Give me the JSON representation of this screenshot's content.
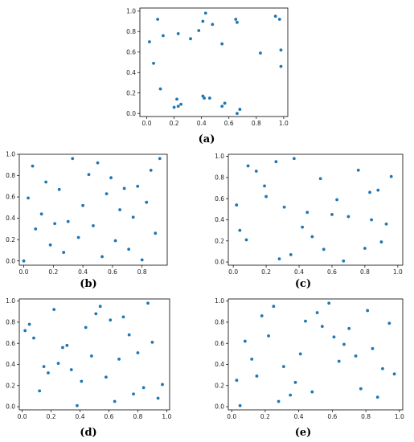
{
  "chart_data": [
    {
      "type": "scatter",
      "caption": "(a)",
      "xlim": [
        -0.05,
        1.03
      ],
      "ylim": [
        -0.03,
        1.03
      ],
      "xticks": [
        0.0,
        0.2,
        0.4,
        0.6,
        0.8,
        1.0
      ],
      "yticks": [
        0.0,
        0.2,
        0.4,
        0.6,
        0.8,
        1.0
      ],
      "tick_labels_x": [
        "0.0",
        "0.2",
        "0.4",
        "0.6",
        "0.8",
        "1.0"
      ],
      "tick_labels_y": [
        "0.0",
        "0.2",
        "0.4",
        "0.6",
        "0.8",
        "1.0"
      ],
      "grid": false,
      "series": [
        {
          "color": "#1f77b4",
          "x": [
            0.02,
            0.05,
            0.08,
            0.12,
            0.23,
            0.32,
            0.38,
            0.41,
            0.43,
            0.48,
            0.55,
            0.65,
            0.66,
            0.83,
            0.94,
            0.97,
            0.98,
            0.98,
            0.1,
            0.2,
            0.22,
            0.23,
            0.25,
            0.41,
            0.42,
            0.46,
            0.55,
            0.57,
            0.66,
            0.68
          ],
          "y": [
            0.7,
            0.49,
            0.92,
            0.76,
            0.78,
            0.73,
            0.81,
            0.9,
            0.98,
            0.87,
            0.68,
            0.92,
            0.89,
            0.59,
            0.95,
            0.92,
            0.62,
            0.46,
            0.24,
            0.06,
            0.14,
            0.07,
            0.09,
            0.17,
            0.15,
            0.15,
            0.07,
            0.1,
            0.0,
            0.04
          ]
        }
      ]
    },
    {
      "type": "scatter",
      "caption": "(b)",
      "xlim": [
        -0.03,
        0.97
      ],
      "ylim": [
        -0.04,
        1.0
      ],
      "xticks": [
        0.0,
        0.2,
        0.4,
        0.6,
        0.8
      ],
      "yticks": [
        0.0,
        0.2,
        0.4,
        0.6,
        0.8,
        1.0
      ],
      "tick_labels_x": [
        "0.0",
        "0.2",
        "0.4",
        "0.6",
        "0.8"
      ],
      "tick_labels_y": [
        "0.0",
        "0.2",
        "0.4",
        "0.6",
        "0.8",
        "1.0"
      ],
      "grid": false,
      "series": [
        {
          "color": "#1f77b4",
          "x": [
            0.0,
            0.03,
            0.06,
            0.08,
            0.12,
            0.15,
            0.18,
            0.21,
            0.24,
            0.27,
            0.3,
            0.33,
            0.37,
            0.4,
            0.44,
            0.47,
            0.5,
            0.53,
            0.56,
            0.59,
            0.62,
            0.65,
            0.68,
            0.71,
            0.74,
            0.77,
            0.8,
            0.83,
            0.86,
            0.89,
            0.92
          ],
          "y": [
            0.0,
            0.59,
            0.89,
            0.3,
            0.44,
            0.74,
            0.15,
            0.35,
            0.67,
            0.08,
            0.37,
            0.96,
            0.22,
            0.52,
            0.81,
            0.33,
            0.92,
            0.04,
            0.63,
            0.78,
            0.19,
            0.48,
            0.68,
            0.11,
            0.41,
            0.7,
            0.01,
            0.55,
            0.85,
            0.26,
            0.96
          ]
        }
      ]
    },
    {
      "type": "scatter",
      "caption": "(c)",
      "xlim": [
        -0.03,
        1.03
      ],
      "ylim": [
        -0.03,
        1.02
      ],
      "xticks": [
        0.0,
        0.2,
        0.4,
        0.6,
        0.8,
        1.0
      ],
      "yticks": [
        0.0,
        0.2,
        0.4,
        0.6,
        0.8,
        1.0
      ],
      "tick_labels_x": [
        "0.0",
        "0.2",
        "0.4",
        "0.6",
        "0.8",
        "1.0"
      ],
      "tick_labels_y": [
        "0.0",
        "0.2",
        "0.4",
        "0.6",
        "0.8",
        "1.0"
      ],
      "grid": false,
      "series": [
        {
          "color": "#1f77b4",
          "x": [
            0.02,
            0.04,
            0.08,
            0.09,
            0.14,
            0.19,
            0.2,
            0.26,
            0.28,
            0.31,
            0.35,
            0.37,
            0.42,
            0.45,
            0.48,
            0.53,
            0.55,
            0.6,
            0.63,
            0.67,
            0.7,
            0.76,
            0.8,
            0.83,
            0.84,
            0.88,
            0.9,
            0.93,
            0.96
          ],
          "y": [
            0.54,
            0.3,
            0.21,
            0.91,
            0.86,
            0.72,
            0.62,
            0.95,
            0.03,
            0.52,
            0.07,
            0.98,
            0.33,
            0.47,
            0.24,
            0.79,
            0.12,
            0.45,
            0.59,
            0.01,
            0.43,
            0.87,
            0.13,
            0.66,
            0.4,
            0.68,
            0.19,
            0.36,
            0.81
          ]
        }
      ]
    },
    {
      "type": "scatter",
      "caption": "(d)",
      "xlim": [
        -0.02,
        1.02
      ],
      "ylim": [
        -0.03,
        1.02
      ],
      "xticks": [
        0.0,
        0.2,
        0.4,
        0.6,
        0.8,
        1.0
      ],
      "yticks": [
        0.0,
        0.2,
        0.4,
        0.6,
        0.8,
        1.0
      ],
      "tick_labels_x": [
        "0.0",
        "0.2",
        "0.4",
        "0.6",
        "0.8",
        "1.0"
      ],
      "tick_labels_y": [
        "0.0",
        "0.2",
        "0.4",
        "0.6",
        "0.8",
        "1.0"
      ],
      "grid": false,
      "series": [
        {
          "color": "#1f77b4",
          "x": [
            0.02,
            0.05,
            0.08,
            0.12,
            0.15,
            0.18,
            0.22,
            0.25,
            0.28,
            0.31,
            0.34,
            0.38,
            0.41,
            0.44,
            0.48,
            0.51,
            0.54,
            0.58,
            0.61,
            0.64,
            0.67,
            0.7,
            0.74,
            0.77,
            0.8,
            0.84,
            0.87,
            0.9,
            0.94,
            0.97
          ],
          "y": [
            0.72,
            0.78,
            0.65,
            0.15,
            0.38,
            0.32,
            0.92,
            0.41,
            0.56,
            0.58,
            0.35,
            0.01,
            0.24,
            0.75,
            0.48,
            0.88,
            0.95,
            0.28,
            0.82,
            0.05,
            0.45,
            0.85,
            0.68,
            0.12,
            0.51,
            0.18,
            0.98,
            0.61,
            0.08,
            0.21
          ]
        }
      ]
    },
    {
      "type": "scatter",
      "caption": "(e)",
      "xlim": [
        -0.02,
        1.02
      ],
      "ylim": [
        -0.03,
        1.02
      ],
      "xticks": [
        0.0,
        0.2,
        0.4,
        0.6,
        0.8,
        1.0
      ],
      "yticks": [
        0.0,
        0.2,
        0.4,
        0.6,
        0.8,
        1.0
      ],
      "tick_labels_x": [
        "0.0",
        "0.2",
        "0.4",
        "0.6",
        "0.8",
        "1.0"
      ],
      "tick_labels_y": [
        "0.0",
        "0.2",
        "0.4",
        "0.6",
        "0.8",
        "1.0"
      ],
      "grid": false,
      "series": [
        {
          "color": "#1f77b4",
          "x": [
            0.03,
            0.05,
            0.08,
            0.12,
            0.15,
            0.18,
            0.22,
            0.25,
            0.28,
            0.31,
            0.35,
            0.38,
            0.41,
            0.44,
            0.48,
            0.51,
            0.54,
            0.58,
            0.61,
            0.64,
            0.67,
            0.7,
            0.74,
            0.77,
            0.81,
            0.84,
            0.87,
            0.9,
            0.94,
            0.97
          ],
          "y": [
            0.25,
            0.01,
            0.62,
            0.45,
            0.29,
            0.86,
            0.67,
            0.95,
            0.05,
            0.38,
            0.11,
            0.23,
            0.5,
            0.81,
            0.14,
            0.89,
            0.76,
            0.98,
            0.66,
            0.43,
            0.59,
            0.74,
            0.48,
            0.17,
            0.91,
            0.55,
            0.09,
            0.36,
            0.79,
            0.31
          ]
        }
      ]
    }
  ]
}
